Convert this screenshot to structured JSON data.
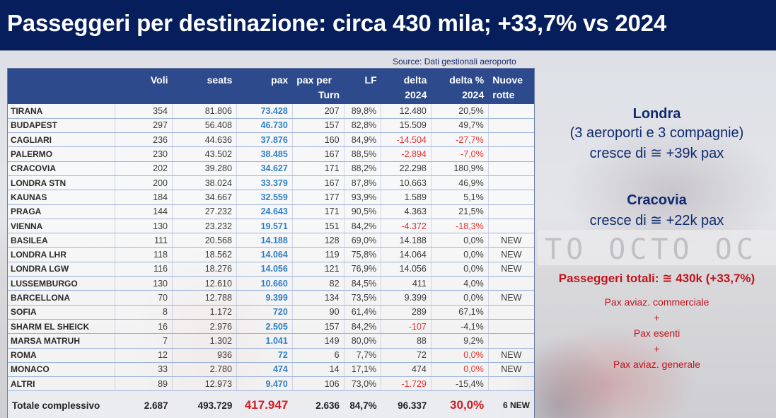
{
  "slide": {
    "title": "Passeggeri per destinazione: circa 430 mila; +33,7% vs 2024",
    "source": "Source: Dati gestionali aeroporto"
  },
  "table": {
    "headers_row1": [
      "",
      "Voli",
      "seats",
      "pax",
      "pax per",
      "LF",
      "delta",
      "delta %",
      "Nuove"
    ],
    "headers_row2": [
      "",
      "",
      "",
      "",
      "Turn",
      "",
      "2024",
      "2024",
      "rotte"
    ],
    "rows": [
      {
        "dest": "TIRANA",
        "voli": "354",
        "seats": "81.806",
        "pax": "73.428",
        "pax_turn": "207",
        "lf": "89,8%",
        "delta": "12.480",
        "delta_pct": "20,5%",
        "nuove": ""
      },
      {
        "dest": "BUDAPEST",
        "voli": "297",
        "seats": "56.408",
        "pax": "46.730",
        "pax_turn": "157",
        "lf": "82,8%",
        "delta": "15.509",
        "delta_pct": "49,7%",
        "nuove": ""
      },
      {
        "dest": "CAGLIARI",
        "voli": "236",
        "seats": "44.636",
        "pax": "37.876",
        "pax_turn": "160",
        "lf": "84,9%",
        "delta": "-14.504",
        "delta_pct": "-27,7%",
        "nuove": ""
      },
      {
        "dest": "PALERMO",
        "voli": "230",
        "seats": "43.502",
        "pax": "38.485",
        "pax_turn": "167",
        "lf": "88,5%",
        "delta": "-2.894",
        "delta_pct": "-7,0%",
        "nuove": ""
      },
      {
        "dest": "CRACOVIA",
        "voli": "202",
        "seats": "39.280",
        "pax": "34.627",
        "pax_turn": "171",
        "lf": "88,2%",
        "delta": "22.298",
        "delta_pct": "180,9%",
        "nuove": ""
      },
      {
        "dest": "LONDRA STN",
        "voli": "200",
        "seats": "38.024",
        "pax": "33.379",
        "pax_turn": "167",
        "lf": "87,8%",
        "delta": "10.663",
        "delta_pct": "46,9%",
        "nuove": ""
      },
      {
        "dest": "KAUNAS",
        "voli": "184",
        "seats": "34.667",
        "pax": "32.559",
        "pax_turn": "177",
        "lf": "93,9%",
        "delta": "1.589",
        "delta_pct": "5,1%",
        "nuove": ""
      },
      {
        "dest": "PRAGA",
        "voli": "144",
        "seats": "27.232",
        "pax": "24.643",
        "pax_turn": "171",
        "lf": "90,5%",
        "delta": "4.363",
        "delta_pct": "21,5%",
        "nuove": ""
      },
      {
        "dest": "VIENNA",
        "voli": "130",
        "seats": "23.232",
        "pax": "19.571",
        "pax_turn": "151",
        "lf": "84,2%",
        "delta": "-4.372",
        "delta_pct": "-18,3%",
        "nuove": ""
      },
      {
        "dest": "BASILEA",
        "voli": "111",
        "seats": "20.568",
        "pax": "14.188",
        "pax_turn": "128",
        "lf": "69,0%",
        "delta": "14.188",
        "delta_pct": "0,0%",
        "nuove": "NEW"
      },
      {
        "dest": "LONDRA LHR",
        "voli": "118",
        "seats": "18.562",
        "pax": "14.064",
        "pax_turn": "119",
        "lf": "75,8%",
        "delta": "14.064",
        "delta_pct": "0,0%",
        "nuove": "NEW"
      },
      {
        "dest": "LONDRA LGW",
        "voli": "116",
        "seats": "18.276",
        "pax": "14.056",
        "pax_turn": "121",
        "lf": "76,9%",
        "delta": "14.056",
        "delta_pct": "0,0%",
        "nuove": "NEW"
      },
      {
        "dest": "LUSSEMBURGO",
        "voli": "130",
        "seats": "12.610",
        "pax": "10.660",
        "pax_turn": "82",
        "lf": "84,5%",
        "delta": "411",
        "delta_pct": "4,0%",
        "nuove": ""
      },
      {
        "dest": "BARCELLONA",
        "voli": "70",
        "seats": "12.788",
        "pax": "9.399",
        "pax_turn": "134",
        "lf": "73,5%",
        "delta": "9.399",
        "delta_pct": "0,0%",
        "nuove": "NEW"
      },
      {
        "dest": "SOFIA",
        "voli": "8",
        "seats": "1.172",
        "pax": "720",
        "pax_turn": "90",
        "lf": "61,4%",
        "delta": "289",
        "delta_pct": "67,1%",
        "nuove": ""
      },
      {
        "dest": "SHARM EL SHEICK",
        "voli": "16",
        "seats": "2.976",
        "pax": "2.505",
        "pax_turn": "157",
        "lf": "84,2%",
        "delta": "-107",
        "delta_pct": "-4,1%",
        "nuove": ""
      },
      {
        "dest": "MARSA MATRUH",
        "voli": "7",
        "seats": "1.302",
        "pax": "1.041",
        "pax_turn": "149",
        "lf": "80,0%",
        "delta": "88",
        "delta_pct": "9,2%",
        "nuove": ""
      },
      {
        "dest": "ROMA",
        "voli": "12",
        "seats": "936",
        "pax": "72",
        "pax_turn": "6",
        "lf": "7,7%",
        "delta": "72",
        "delta_pct": "0,0%",
        "nuove": "NEW"
      },
      {
        "dest": "MONACO",
        "voli": "33",
        "seats": "2.780",
        "pax": "474",
        "pax_turn": "14",
        "lf": "17,1%",
        "delta": "474",
        "delta_pct": "0,0%",
        "nuove": "NEW"
      },
      {
        "dest": "ALTRI",
        "voli": "89",
        "seats": "12.973",
        "pax": "9.470",
        "pax_turn": "106",
        "lf": "73,0%",
        "delta": "-1.729",
        "delta_pct": "-15,4%",
        "nuove": ""
      }
    ],
    "total": {
      "dest": "Totale complessivo",
      "voli": "2.687",
      "seats": "493.729",
      "pax": "417.947",
      "pax_turn": "2.636",
      "lf": "84,7%",
      "delta": "96.337",
      "delta_pct": "30,0%",
      "nuove": "6 NEW"
    },
    "red_delta_rows": [
      2,
      3,
      8,
      15,
      19
    ],
    "red_pct_rows": [
      2,
      3,
      8,
      17,
      18
    ]
  },
  "side_notes": {
    "londra": {
      "title": "Londra",
      "line1": "(3 aeroporti e 3 compagnie)",
      "line2": "cresce di ≅ +39k pax"
    },
    "cracovia": {
      "title": "Cracovia",
      "line1": "cresce di ≅ +22k pax"
    },
    "totali": {
      "title": "Passeggeri totali: ≅ 430k (+33,7%)",
      "items": [
        "Pax aviaz. commerciale",
        "+",
        "Pax esenti",
        "+",
        "Pax aviaz. generale"
      ]
    }
  },
  "background": {
    "watermark_text": "TO  OCTO  OC"
  },
  "colors": {
    "title_bar": "#061f5c",
    "table_header": "#2d4b8c",
    "pax_blue": "#2f7fc8",
    "negative_red": "#e5322f",
    "note_blue": "#0e2a6e",
    "note_red": "#c2121b"
  }
}
